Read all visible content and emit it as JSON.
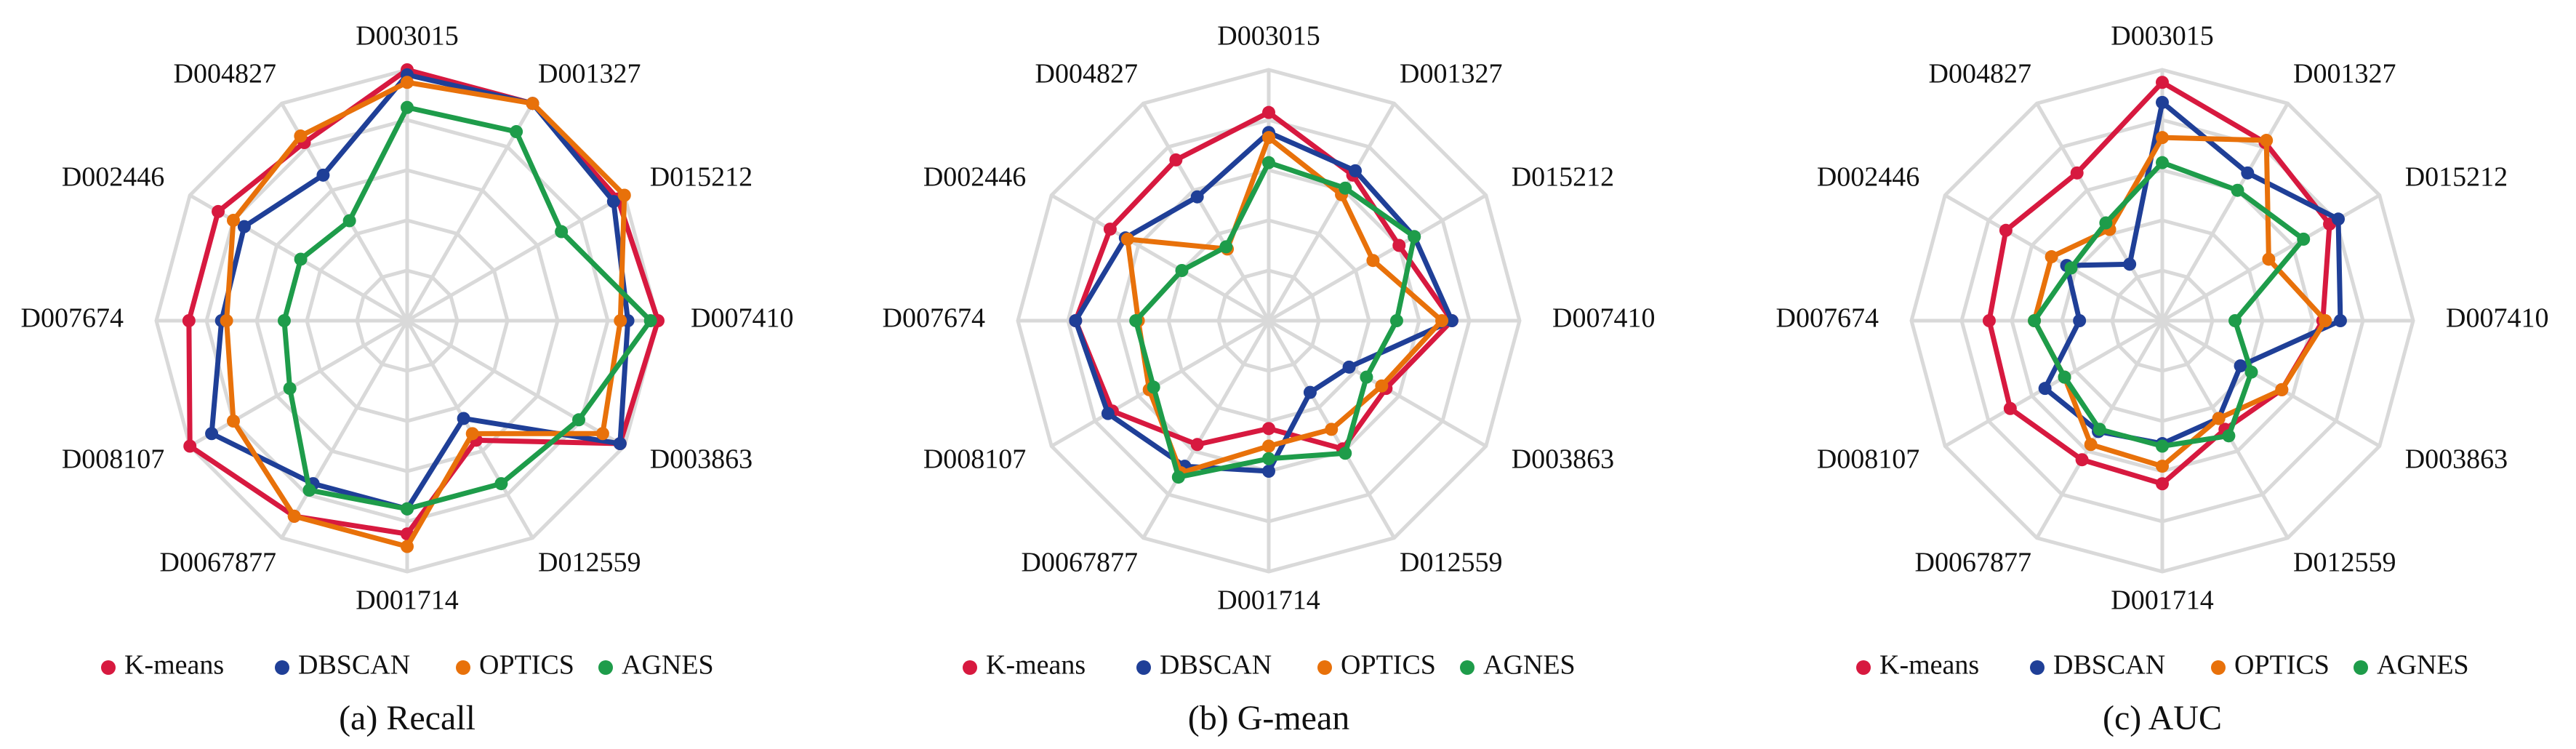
{
  "chart_data": [
    {
      "type": "radar",
      "caption": "(a) Recall",
      "categories": [
        "D003015",
        "D001327",
        "D015212",
        "D007410",
        "D003863",
        "D012559",
        "D001714",
        "D0067877",
        "D008107",
        "D007674",
        "D002446",
        "D004827"
      ],
      "ylim": [
        0,
        1
      ],
      "yticks": [
        0.2,
        0.4,
        0.6,
        0.8,
        1.0
      ],
      "grid": true,
      "series": [
        {
          "name": "K-means",
          "color": "#d7193f",
          "values": [
            1.0,
            1.0,
            0.97,
            1.0,
            0.98,
            0.55,
            0.85,
            0.9,
            1.0,
            0.87,
            0.87,
            0.82
          ]
        },
        {
          "name": "DBSCAN",
          "color": "#1f3f97",
          "values": [
            0.98,
            1.0,
            0.95,
            0.88,
            0.98,
            0.45,
            0.75,
            0.75,
            0.9,
            0.74,
            0.75,
            0.67
          ]
        },
        {
          "name": "OPTICS",
          "color": "#e8710a",
          "values": [
            0.95,
            1.0,
            1.0,
            0.85,
            0.9,
            0.52,
            0.9,
            0.9,
            0.8,
            0.72,
            0.8,
            0.85
          ]
        },
        {
          "name": "AGNES",
          "color": "#1e9c4a",
          "values": [
            0.85,
            0.87,
            0.71,
            0.97,
            0.79,
            0.75,
            0.75,
            0.78,
            0.54,
            0.49,
            0.49,
            0.46
          ]
        }
      ]
    },
    {
      "type": "radar",
      "caption": "(b) G-mean",
      "categories": [
        "D003015",
        "D001327",
        "D015212",
        "D007410",
        "D003863",
        "D012559",
        "D001714",
        "D0067877",
        "D008107",
        "D007674",
        "D002446",
        "D004827"
      ],
      "ylim": [
        0,
        1
      ],
      "yticks": [
        0.2,
        0.4,
        0.6,
        0.8,
        1.0
      ],
      "grid": true,
      "series": [
        {
          "name": "K-means",
          "color": "#d7193f",
          "values": [
            0.83,
            0.67,
            0.6,
            0.73,
            0.54,
            0.59,
            0.43,
            0.57,
            0.72,
            0.77,
            0.73,
            0.74
          ]
        },
        {
          "name": "DBSCAN",
          "color": "#1f3f97",
          "values": [
            0.75,
            0.69,
            0.67,
            0.73,
            0.37,
            0.33,
            0.6,
            0.67,
            0.74,
            0.77,
            0.66,
            0.57
          ]
        },
        {
          "name": "OPTICS",
          "color": "#e8710a",
          "values": [
            0.73,
            0.58,
            0.48,
            0.69,
            0.52,
            0.5,
            0.5,
            0.7,
            0.55,
            0.52,
            0.65,
            0.33
          ]
        },
        {
          "name": "AGNES",
          "color": "#1e9c4a",
          "values": [
            0.63,
            0.61,
            0.67,
            0.51,
            0.45,
            0.61,
            0.55,
            0.72,
            0.53,
            0.53,
            0.4,
            0.34
          ]
        }
      ]
    },
    {
      "type": "radar",
      "caption": "(c) AUC",
      "categories": [
        "D003015",
        "D001327",
        "D015212",
        "D007410",
        "D003863",
        "D012559",
        "D001714",
        "D0067877",
        "D008107",
        "D007674",
        "D002446",
        "D004827"
      ],
      "ylim": [
        0,
        1
      ],
      "yticks": [
        0.2,
        0.4,
        0.6,
        0.8,
        1.0
      ],
      "grid": true,
      "series": [
        {
          "name": "K-means",
          "color": "#d7193f",
          "values": [
            0.95,
            0.82,
            0.77,
            0.64,
            0.55,
            0.5,
            0.65,
            0.64,
            0.7,
            0.69,
            0.72,
            0.68
          ]
        },
        {
          "name": "DBSCAN",
          "color": "#1f3f97",
          "values": [
            0.87,
            0.68,
            0.81,
            0.71,
            0.36,
            0.45,
            0.49,
            0.51,
            0.54,
            0.33,
            0.44,
            0.26
          ]
        },
        {
          "name": "OPTICS",
          "color": "#e8710a",
          "values": [
            0.73,
            0.83,
            0.49,
            0.65,
            0.55,
            0.45,
            0.58,
            0.57,
            0.45,
            0.51,
            0.51,
            0.42
          ]
        },
        {
          "name": "AGNES",
          "color": "#1e9c4a",
          "values": [
            0.63,
            0.6,
            0.65,
            0.29,
            0.41,
            0.53,
            0.5,
            0.5,
            0.45,
            0.51,
            0.42,
            0.45
          ]
        }
      ]
    }
  ]
}
